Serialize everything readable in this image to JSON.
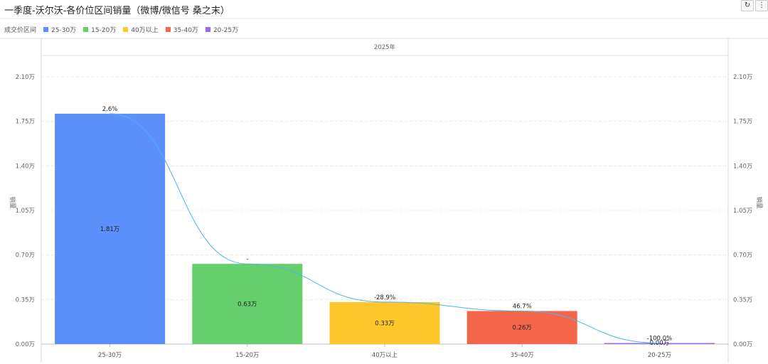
{
  "title": "一季度-沃尔沃-各价位区间销量（微博/微信号 桑之末）",
  "toolbar": {
    "refresh_icon": "refresh-icon",
    "more_icon": "more-vertical-icon"
  },
  "chart_data": {
    "type": "bar",
    "legend_title": "成交价区间",
    "header": "2025年",
    "categories": [
      "25-30万",
      "15-20万",
      "40万以上",
      "35-40万",
      "20-25万"
    ],
    "values": [
      1.81,
      0.63,
      0.33,
      0.26,
      0.0
    ],
    "value_labels": [
      "1.81万",
      "0.63万",
      "0.33万",
      "0.26万",
      "0.00万"
    ],
    "pct_labels": [
      "2.6%",
      "-",
      "-28.9%",
      "46.7%",
      "-100.0%"
    ],
    "colors": [
      "#5b8ff9",
      "#65cf6c",
      "#ffc72b",
      "#f4664a",
      "#9b6bf2"
    ],
    "legend": [
      "25-30万",
      "15-20万",
      "40万以上",
      "35-40万",
      "20-25万"
    ],
    "legend_position": "top-left",
    "ylabel_left": "销量",
    "ylabel_right": "销量",
    "ylim": [
      0,
      2.1
    ],
    "yticks": [
      "0.00万",
      "0.35万",
      "0.70万",
      "1.05万",
      "1.40万",
      "1.75万",
      "2.10万"
    ],
    "trend_line": true,
    "trend_color": "#4db6e8",
    "grid": true
  }
}
